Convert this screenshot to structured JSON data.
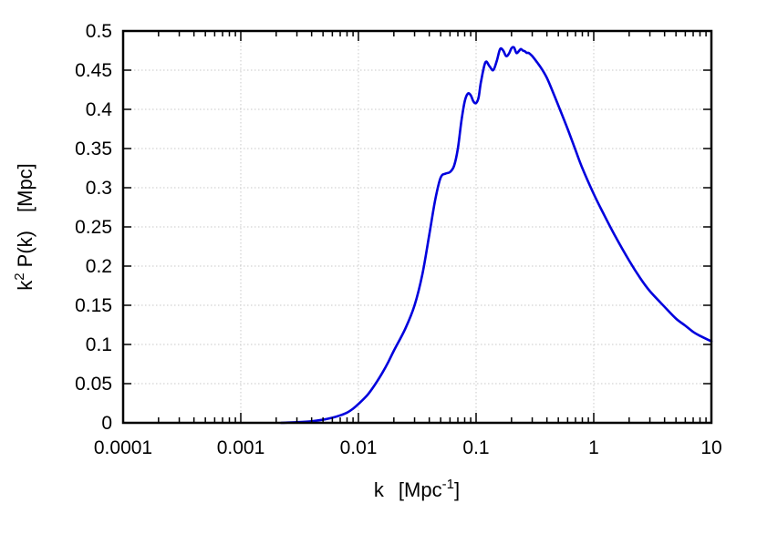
{
  "chart_data": {
    "type": "line",
    "title": "",
    "xlabel": "k",
    "xlabel_unit": "[Mpc",
    "xlabel_unit_exp": "-1",
    "xlabel_unit_close": "]",
    "ylabel_base": "k",
    "ylabel_exp": "2",
    "ylabel_rest": " P(k)",
    "ylabel_unit": "[Mpc]",
    "x_scale": "log",
    "xlim": [
      0.0001,
      10
    ],
    "ylim": [
      0,
      0.5
    ],
    "grid": true,
    "legend": "none",
    "x_ticks": [
      {
        "value": 0.0001,
        "label": "0.0001"
      },
      {
        "value": 0.001,
        "label": "0.001"
      },
      {
        "value": 0.01,
        "label": "0.01"
      },
      {
        "value": 0.1,
        "label": "0.1"
      },
      {
        "value": 1,
        "label": "1"
      },
      {
        "value": 10,
        "label": "10"
      }
    ],
    "y_ticks": [
      {
        "value": 0,
        "label": "0"
      },
      {
        "value": 0.05,
        "label": "0.05"
      },
      {
        "value": 0.1,
        "label": "0.1"
      },
      {
        "value": 0.15,
        "label": "0.15"
      },
      {
        "value": 0.2,
        "label": "0.2"
      },
      {
        "value": 0.25,
        "label": "0.25"
      },
      {
        "value": 0.3,
        "label": "0.3"
      },
      {
        "value": 0.35,
        "label": "0.35"
      },
      {
        "value": 0.4,
        "label": "0.4"
      },
      {
        "value": 0.45,
        "label": "0.45"
      },
      {
        "value": 0.5,
        "label": "0.5"
      }
    ],
    "series": [
      {
        "color": "#0000dd",
        "x": [
          0.0022,
          0.003,
          0.004,
          0.005,
          0.006,
          0.007,
          0.008,
          0.009,
          0.01,
          0.012,
          0.014,
          0.016,
          0.018,
          0.02,
          0.025,
          0.03,
          0.035,
          0.04,
          0.045,
          0.05,
          0.055,
          0.06,
          0.065,
          0.07,
          0.075,
          0.08,
          0.085,
          0.09,
          0.095,
          0.1,
          0.105,
          0.11,
          0.12,
          0.13,
          0.14,
          0.15,
          0.16,
          0.17,
          0.18,
          0.19,
          0.2,
          0.21,
          0.22,
          0.23,
          0.24,
          0.25,
          0.26,
          0.27,
          0.28,
          0.3,
          0.33,
          0.36,
          0.4,
          0.45,
          0.5,
          0.6,
          0.7,
          0.8,
          1.0,
          1.2,
          1.5,
          2.0,
          2.5,
          3.0,
          4.0,
          5.0,
          6.0,
          7.0,
          8.0,
          10.0
        ],
        "y": [
          0.0,
          0.0008,
          0.002,
          0.004,
          0.0065,
          0.0095,
          0.013,
          0.018,
          0.024,
          0.036,
          0.05,
          0.064,
          0.078,
          0.092,
          0.12,
          0.15,
          0.19,
          0.24,
          0.285,
          0.313,
          0.318,
          0.32,
          0.328,
          0.35,
          0.385,
          0.41,
          0.42,
          0.418,
          0.41,
          0.408,
          0.415,
          0.435,
          0.46,
          0.455,
          0.45,
          0.462,
          0.477,
          0.475,
          0.468,
          0.471,
          0.478,
          0.479,
          0.472,
          0.474,
          0.477,
          0.475,
          0.474,
          0.472,
          0.472,
          0.468,
          0.46,
          0.452,
          0.44,
          0.422,
          0.405,
          0.375,
          0.348,
          0.325,
          0.292,
          0.268,
          0.24,
          0.207,
          0.184,
          0.168,
          0.148,
          0.133,
          0.124,
          0.116,
          0.111,
          0.104
        ]
      }
    ]
  }
}
